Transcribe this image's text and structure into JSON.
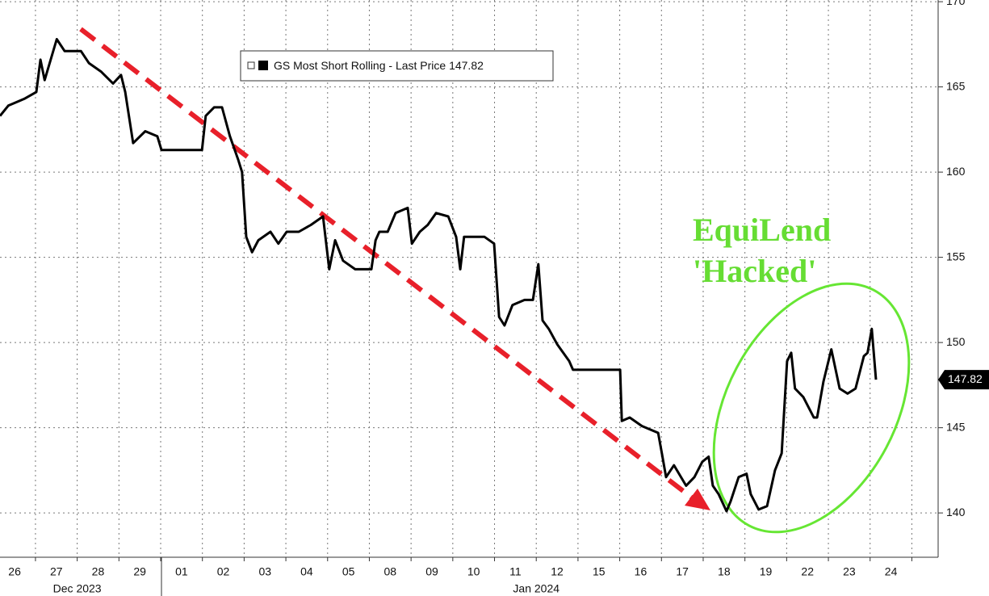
{
  "chart_data": {
    "type": "line",
    "series": [
      {
        "name": "GS Most Short Rolling - Last Price",
        "color": "#000000",
        "values": [
          163.3,
          163.9,
          164.3,
          164.7,
          166.6,
          165.4,
          167.8,
          167.1,
          167.1,
          166.4,
          165.9,
          165.2,
          165.7,
          164.7,
          161.7,
          162.4,
          162.1,
          161.3,
          161.3,
          163.3,
          163.8,
          163.8,
          162.1,
          160.7,
          160.0,
          156.2,
          155.3,
          156.0,
          156.5,
          155.8,
          156.5,
          156.5,
          156.9,
          157.4,
          154.3,
          156.0,
          154.8,
          154.3,
          154.3,
          156.0,
          156.5,
          156.5,
          157.6,
          157.9,
          155.8,
          156.5,
          156.9,
          157.6,
          157.4,
          156.2,
          154.3,
          156.2,
          156.2,
          155.8,
          151.5,
          151.0,
          152.2,
          152.5,
          152.5,
          154.6,
          151.3,
          150.8,
          149.9,
          148.9,
          148.4,
          148.4,
          145.4,
          145.6,
          145.1,
          144.7,
          143.5,
          142.1,
          142.8,
          141.6,
          142.1,
          143.0,
          143.3,
          141.6,
          141.1,
          140.1,
          140.7,
          142.1,
          142.3,
          141.1,
          140.2,
          140.4,
          142.5,
          143.5,
          148.9,
          149.4,
          147.3,
          146.8,
          145.6,
          145.6,
          147.7,
          149.6,
          147.3,
          147.0,
          147.3,
          149.2,
          149.4,
          150.8,
          147.82
        ]
      }
    ],
    "x": [
      -0.35,
      -0.15,
      0.23,
      0.52,
      0.62,
      0.72,
      1.01,
      1.2,
      1.59,
      1.78,
      2.07,
      2.36,
      2.55,
      2.65,
      2.84,
      3.13,
      3.42,
      3.52,
      4.49,
      4.58,
      4.78,
      4.97,
      5.16,
      5.36,
      5.45,
      5.55,
      5.69,
      5.84,
      6.13,
      6.32,
      6.52,
      6.81,
      7.1,
      7.39,
      7.54,
      7.68,
      7.87,
      8.16,
      8.55,
      8.65,
      8.74,
      8.94,
      9.13,
      9.42,
      9.52,
      9.71,
      9.9,
      10.1,
      10.39,
      10.58,
      10.68,
      10.77,
      11.26,
      11.49,
      11.61,
      11.74,
      11.93,
      12.22,
      12.42,
      12.55,
      12.65,
      12.8,
      13.0,
      13.29,
      13.38,
      14.51,
      14.55,
      14.74,
      15.03,
      15.42,
      15.51,
      15.61,
      15.8,
      16.09,
      16.29,
      16.48,
      16.63,
      16.73,
      16.87,
      17.06,
      17.16,
      17.35,
      17.54,
      17.64,
      17.83,
      18.03,
      18.22,
      18.38,
      18.51,
      18.61,
      18.7,
      18.9,
      19.15,
      19.23,
      19.38,
      19.57,
      19.77,
      19.96,
      20.15,
      20.35,
      20.44,
      20.54,
      20.64
    ],
    "last_price": 147.82,
    "xlim": [
      -0.35,
      22.13
    ],
    "xticks": [
      {
        "value": 0,
        "label": "26"
      },
      {
        "value": 1,
        "label": "27"
      },
      {
        "value": 2,
        "label": "28"
      },
      {
        "value": 3,
        "label": "29"
      },
      {
        "value": 4,
        "label": "01"
      },
      {
        "value": 5,
        "label": "02"
      },
      {
        "value": 6,
        "label": "03"
      },
      {
        "value": 7,
        "label": "04"
      },
      {
        "value": 8,
        "label": "05"
      },
      {
        "value": 9,
        "label": "08"
      },
      {
        "value": 10,
        "label": "09"
      },
      {
        "value": 11,
        "label": "10"
      },
      {
        "value": 12,
        "label": "11"
      },
      {
        "value": 13,
        "label": "12"
      },
      {
        "value": 14,
        "label": "15"
      },
      {
        "value": 15,
        "label": "16"
      },
      {
        "value": 16,
        "label": "17"
      },
      {
        "value": 17,
        "label": "18"
      },
      {
        "value": 18,
        "label": "19"
      },
      {
        "value": 19,
        "label": "22"
      },
      {
        "value": 20,
        "label": "23"
      },
      {
        "value": 21,
        "label": "24"
      }
    ],
    "xgroups": [
      {
        "value": 1.5,
        "label": "Dec 2023"
      },
      {
        "value": 12.5,
        "label": "Jan 2024"
      }
    ],
    "ylim": [
      137.4,
      170.1
    ],
    "yticks": [
      140,
      145,
      150,
      155,
      160,
      165,
      170
    ],
    "grid": true,
    "annotations": [
      "EquiLend",
      "'Hacked'"
    ]
  }
}
